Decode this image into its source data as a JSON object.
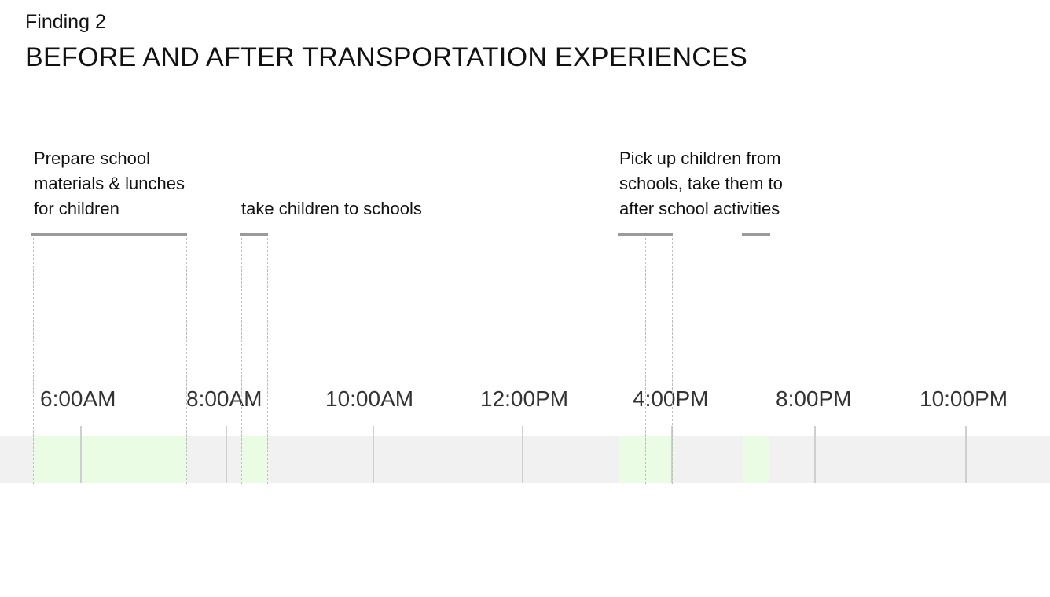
{
  "header": {
    "kicker": "Finding 2",
    "title": "BEFORE AND AFTER TRANSPORTATION EXPERIENCES"
  },
  "timeline": {
    "time_labels": [
      "6:00AM",
      "8:00AM",
      "10:00AM",
      "12:00PM",
      "4:00PM",
      "8:00PM",
      "10:00PM"
    ],
    "annotations": [
      {
        "lines": [
          "Prepare school",
          "materials & lunches",
          "for children"
        ]
      },
      {
        "lines": [
          "take children to schools"
        ]
      },
      {
        "lines": [
          "Pick up children from",
          "schools,  take them to",
          "after school activities"
        ]
      }
    ]
  },
  "colors": {
    "band": "#f1f1f1",
    "highlight": "#eafde4",
    "tick": "#cfcfcf",
    "bracket": "#9a9a9a",
    "guide": "#bdbdbd"
  }
}
